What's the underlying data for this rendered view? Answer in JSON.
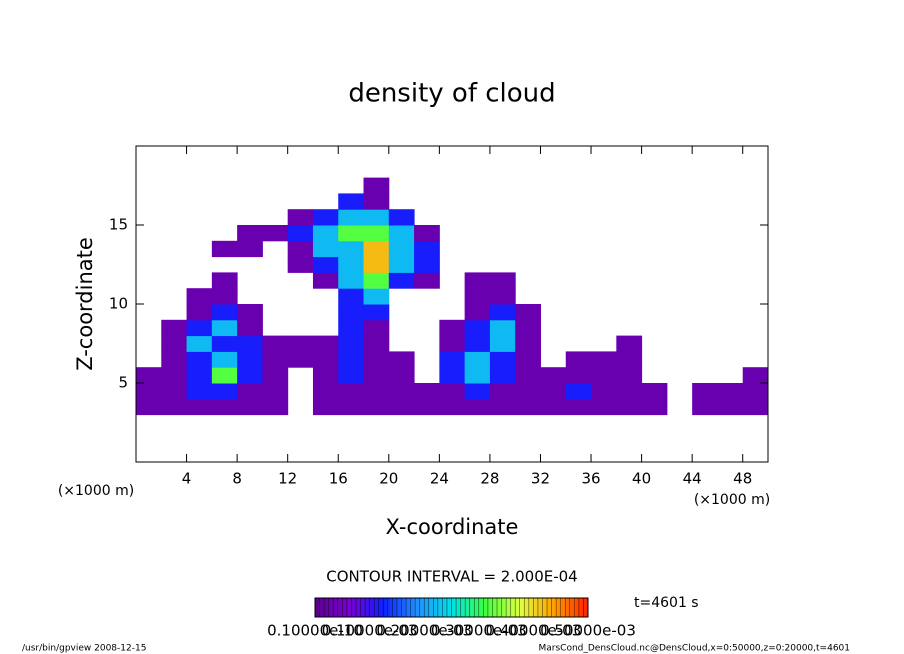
{
  "chart_data": {
    "type": "contour",
    "title": "density of cloud",
    "xlabel": "X-coordinate",
    "ylabel": "Z-coordinate",
    "xunit": "(×1000 m)",
    "yunit": "(×1000 m)",
    "contour_interval": "CONTOUR INTERVAL = 2.000E-04",
    "time_label": "t=4601 s",
    "footer_left": "/usr/bin/gpview  2008-12-15",
    "footer_right": "MarsCond_DensCloud.nc@DensCloud,x=0:50000,z=0:20000,t=4601",
    "xlim": [
      0,
      50
    ],
    "ylim": [
      0,
      20
    ],
    "xticks": [
      4,
      8,
      12,
      16,
      20,
      24,
      28,
      32,
      36,
      40,
      44,
      48
    ],
    "yticks": [
      5,
      10,
      15
    ],
    "x_bins": [
      0,
      2,
      4,
      6,
      8,
      10,
      12,
      14,
      16,
      18,
      20,
      22,
      24,
      26,
      28,
      30,
      32,
      34,
      36,
      38,
      40,
      42,
      44,
      46,
      48,
      50
    ],
    "z_bins": [
      3,
      4,
      5,
      6,
      7,
      8,
      9,
      10,
      11,
      12,
      13,
      14,
      15,
      16,
      17,
      18
    ],
    "values": [
      [
        3e-05,
        3e-05,
        3e-05,
        3e-05,
        3e-05,
        3e-05,
        0,
        3e-05,
        3e-05,
        3e-05,
        3e-05,
        3e-05,
        3e-05,
        3e-05,
        3e-05,
        3e-05,
        3e-05,
        3e-05,
        3e-05,
        3e-05,
        3e-05,
        0,
        3e-05,
        3e-05,
        3e-05
      ],
      [
        3e-05,
        3e-05,
        0.00012,
        0.00012,
        3e-05,
        3e-05,
        0,
        3e-05,
        3e-05,
        3e-05,
        3e-05,
        3e-05,
        3e-05,
        0.00012,
        3e-05,
        3e-05,
        3e-05,
        0.00012,
        3e-05,
        3e-05,
        3e-05,
        0,
        3e-05,
        3e-05,
        3e-05
      ],
      [
        3e-05,
        3e-05,
        0.00012,
        0.00032,
        0.00012,
        3e-05,
        0,
        3e-05,
        0.00012,
        3e-05,
        3e-05,
        0,
        0.00012,
        0.00022,
        0.00012,
        3e-05,
        3e-05,
        3e-05,
        3e-05,
        3e-05,
        0,
        0,
        0,
        0,
        3e-05
      ],
      [
        0,
        3e-05,
        0.00012,
        0.00022,
        0.00012,
        3e-05,
        3e-05,
        3e-05,
        0.00012,
        3e-05,
        3e-05,
        0,
        0.00012,
        0.00022,
        0.00012,
        3e-05,
        0,
        3e-05,
        3e-05,
        3e-05,
        0,
        0,
        0,
        0,
        0
      ],
      [
        0,
        3e-05,
        0.00022,
        0.00012,
        0.00012,
        3e-05,
        3e-05,
        3e-05,
        0.00012,
        3e-05,
        0,
        0,
        3e-05,
        0.00012,
        0.00022,
        3e-05,
        0,
        0,
        0,
        3e-05,
        0,
        0,
        0,
        0,
        0
      ],
      [
        0,
        3e-05,
        0.00012,
        0.00022,
        3e-05,
        0,
        0,
        0,
        0.00012,
        3e-05,
        0,
        0,
        3e-05,
        0.00012,
        0.00022,
        3e-05,
        0,
        0,
        0,
        0,
        0,
        0,
        0,
        0,
        0
      ],
      [
        0,
        0,
        3e-05,
        0.00012,
        3e-05,
        0,
        0,
        0,
        0.00012,
        0.00012,
        0,
        0,
        0,
        3e-05,
        0.00012,
        3e-05,
        0,
        0,
        0,
        0,
        0,
        0,
        0,
        0,
        0
      ],
      [
        0,
        0,
        3e-05,
        3e-05,
        0,
        0,
        0,
        0,
        0.00012,
        0.00022,
        0,
        0,
        0,
        3e-05,
        3e-05,
        0,
        0,
        0,
        0,
        0,
        0,
        0,
        0,
        0,
        0
      ],
      [
        0,
        0,
        0,
        3e-05,
        0,
        0,
        0,
        3e-05,
        0.00022,
        0.00032,
        0.00012,
        3e-05,
        0,
        3e-05,
        3e-05,
        0,
        0,
        0,
        0,
        0,
        0,
        0,
        0,
        0,
        0
      ],
      [
        0,
        0,
        0,
        0,
        0,
        0,
        3e-05,
        0.00012,
        0.00022,
        0.00042,
        0.00022,
        0.00012,
        0,
        0,
        0,
        0,
        0,
        0,
        0,
        0,
        0,
        0,
        0,
        0,
        0
      ],
      [
        0,
        0,
        0,
        3e-05,
        3e-05,
        0,
        3e-05,
        0.00022,
        0.00022,
        0.00042,
        0.00022,
        0.00012,
        0,
        0,
        0,
        0,
        0,
        0,
        0,
        0,
        0,
        0,
        0,
        0,
        0
      ],
      [
        0,
        0,
        0,
        0,
        3e-05,
        3e-05,
        0.00012,
        0.00022,
        0.00032,
        0.00032,
        0.00022,
        3e-05,
        0,
        0,
        0,
        0,
        0,
        0,
        0,
        0,
        0,
        0,
        0,
        0,
        0
      ],
      [
        0,
        0,
        0,
        0,
        0,
        0,
        3e-05,
        0.00012,
        0.00022,
        0.00022,
        0.00012,
        0,
        0,
        0,
        0,
        0,
        0,
        0,
        0,
        0,
        0,
        0,
        0,
        0,
        0
      ],
      [
        0,
        0,
        0,
        0,
        0,
        0,
        0,
        0,
        0.00012,
        3e-05,
        0,
        0,
        0,
        0,
        0,
        0,
        0,
        0,
        0,
        0,
        0,
        0,
        0,
        0,
        0
      ],
      [
        0,
        0,
        0,
        0,
        0,
        0,
        0,
        0,
        0,
        3e-05,
        0,
        0,
        0,
        0,
        0,
        0,
        0,
        0,
        0,
        0,
        0,
        0,
        0,
        0,
        0
      ]
    ],
    "colormap": [
      "#5a0090",
      "#7a00d0",
      "#1020ff",
      "#2090ff",
      "#00e0e8",
      "#40ff40",
      "#e0ff40",
      "#ffa000",
      "#ff2000"
    ],
    "clim": [
      1e-11,
      0.0005
    ],
    "cticks": [
      {
        "value": 1e-11,
        "label": "0.10000e-10"
      },
      {
        "value": 0.0001,
        "label": "0.10000e-03"
      },
      {
        "value": 0.0002,
        "label": "0.20000e-03"
      },
      {
        "value": 0.0003,
        "label": "0.30000e-03"
      },
      {
        "value": 0.0004,
        "label": "0.40000e-03"
      },
      {
        "value": 0.0005,
        "label": "0.50000e-03"
      }
    ]
  }
}
